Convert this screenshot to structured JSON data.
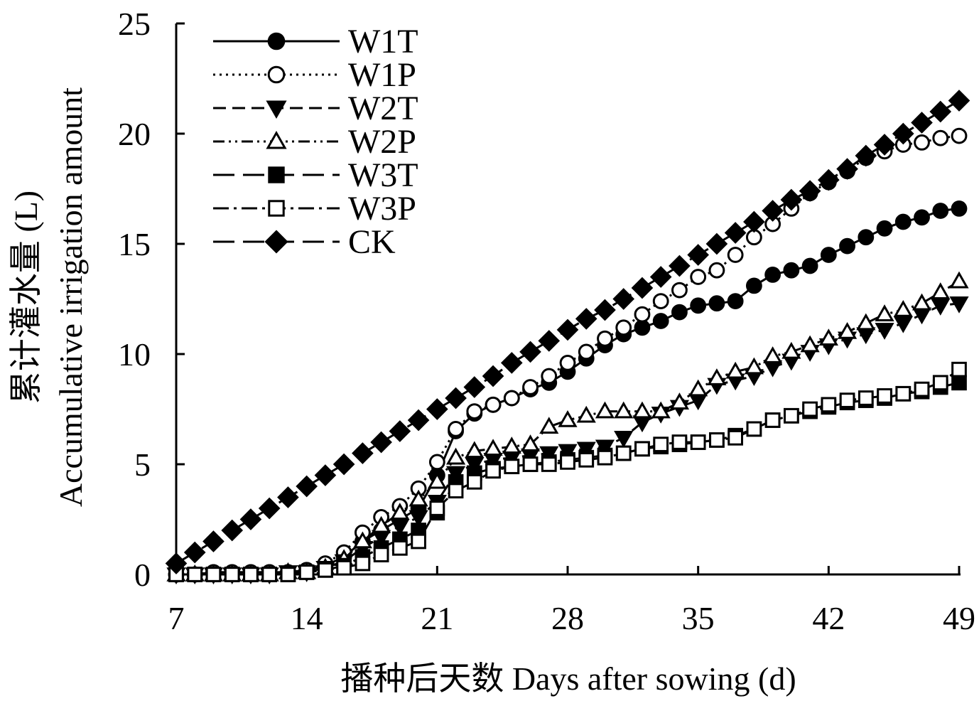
{
  "chart_data": {
    "type": "line",
    "title": "",
    "xlabel": "播种后天数 Days after sowing (d)",
    "ylabel_line1": "累计灌水量 (L)",
    "ylabel_line2": "Accumulative irrigation amount",
    "xlim": [
      7,
      49
    ],
    "ylim": [
      0,
      25
    ],
    "xticks": [
      "7",
      "14",
      "21",
      "28",
      "35",
      "42",
      "49"
    ],
    "yticks": [
      "0",
      "5",
      "10",
      "15",
      "20",
      "25"
    ],
    "legend_position": "top-left",
    "grid": false,
    "x": [
      7,
      8,
      9,
      10,
      11,
      12,
      13,
      14,
      15,
      16,
      17,
      18,
      19,
      20,
      21,
      22,
      23,
      24,
      25,
      26,
      27,
      28,
      29,
      30,
      31,
      32,
      33,
      34,
      35,
      36,
      37,
      38,
      39,
      40,
      41,
      42,
      43,
      44,
      45,
      46,
      47,
      48,
      49
    ],
    "series": [
      {
        "name": "W1T",
        "marker": "circle-filled",
        "line": "solid",
        "values": [
          0.0,
          0.0,
          0.1,
          0.1,
          0.1,
          0.1,
          0.1,
          0.2,
          0.4,
          0.8,
          1.5,
          2.0,
          2.5,
          3.0,
          4.5,
          6.5,
          7.3,
          7.7,
          8.0,
          8.4,
          8.7,
          9.2,
          9.8,
          10.4,
          10.9,
          11.2,
          11.5,
          11.9,
          12.2,
          12.3,
          12.4,
          13.1,
          13.6,
          13.8,
          14.0,
          14.5,
          14.9,
          15.3,
          15.7,
          16.0,
          16.2,
          16.5,
          16.6
        ]
      },
      {
        "name": "W1P",
        "marker": "circle-open",
        "line": "dotted",
        "values": [
          0.0,
          0.0,
          0.1,
          0.1,
          0.1,
          0.1,
          0.1,
          0.2,
          0.5,
          1.0,
          1.9,
          2.6,
          3.1,
          3.9,
          5.1,
          6.6,
          7.4,
          7.7,
          8.0,
          8.5,
          9.0,
          9.6,
          10.1,
          10.7,
          11.2,
          11.8,
          12.4,
          12.9,
          13.5,
          13.8,
          14.5,
          15.3,
          15.9,
          16.6,
          17.3,
          17.8,
          18.3,
          18.9,
          19.2,
          19.5,
          19.6,
          19.8,
          19.9
        ]
      },
      {
        "name": "W2T",
        "marker": "triangle-down-filled",
        "line": "dashed",
        "values": [
          0.0,
          0.0,
          0.0,
          0.0,
          0.0,
          0.0,
          0.1,
          0.1,
          0.3,
          0.6,
          1.2,
          1.7,
          2.2,
          2.6,
          3.3,
          4.6,
          5.0,
          5.2,
          5.3,
          5.4,
          5.5,
          5.6,
          5.7,
          5.8,
          6.2,
          6.9,
          7.3,
          7.6,
          7.9,
          8.6,
          8.8,
          9.0,
          9.4,
          9.7,
          10.1,
          10.4,
          10.7,
          10.9,
          11.1,
          11.4,
          11.8,
          12.2,
          12.3
        ]
      },
      {
        "name": "W2P",
        "marker": "triangle-up-open",
        "line": "dash-dot-dot",
        "values": [
          0.0,
          0.0,
          0.0,
          0.0,
          0.0,
          0.0,
          0.1,
          0.1,
          0.3,
          0.7,
          1.5,
          2.2,
          2.8,
          3.4,
          4.2,
          5.3,
          5.6,
          5.7,
          5.8,
          5.9,
          6.7,
          7.0,
          7.2,
          7.4,
          7.4,
          7.4,
          7.4,
          7.8,
          8.4,
          8.9,
          9.2,
          9.4,
          9.9,
          10.1,
          10.4,
          10.7,
          11.0,
          11.4,
          11.8,
          12.0,
          12.3,
          12.8,
          13.3
        ]
      },
      {
        "name": "W3T",
        "marker": "square-filled",
        "line": "long-dash",
        "values": [
          0.0,
          0.0,
          0.0,
          0.0,
          0.0,
          0.0,
          0.0,
          0.1,
          0.2,
          0.4,
          0.8,
          1.2,
          1.6,
          2.0,
          2.8,
          4.2,
          4.6,
          4.8,
          4.9,
          5.0,
          5.1,
          5.2,
          5.3,
          5.4,
          5.5,
          5.7,
          5.8,
          5.9,
          6.0,
          6.1,
          6.3,
          6.6,
          7.0,
          7.2,
          7.4,
          7.6,
          7.8,
          7.9,
          8.0,
          8.2,
          8.3,
          8.5,
          8.7
        ]
      },
      {
        "name": "W3P",
        "marker": "square-open",
        "line": "dash-dot",
        "values": [
          0.0,
          0.0,
          0.0,
          0.0,
          0.0,
          0.0,
          0.0,
          0.1,
          0.2,
          0.3,
          0.5,
          0.9,
          1.2,
          1.5,
          3.0,
          3.8,
          4.2,
          4.7,
          4.9,
          5.0,
          5.0,
          5.1,
          5.2,
          5.3,
          5.5,
          5.7,
          5.9,
          6.0,
          6.0,
          6.1,
          6.2,
          6.6,
          7.0,
          7.2,
          7.5,
          7.7,
          7.9,
          8.0,
          8.1,
          8.2,
          8.4,
          8.7,
          9.3
        ]
      },
      {
        "name": "CK",
        "marker": "diamond-filled",
        "line": "long-dash",
        "values": [
          0.5,
          1.0,
          1.5,
          2.0,
          2.5,
          3.0,
          3.5,
          4.0,
          4.5,
          5.0,
          5.5,
          6.0,
          6.5,
          7.0,
          7.5,
          8.0,
          8.5,
          9.0,
          9.6,
          10.1,
          10.6,
          11.1,
          11.6,
          12.0,
          12.5,
          13.0,
          13.5,
          14.0,
          14.5,
          15.0,
          15.5,
          16.0,
          16.5,
          17.0,
          17.4,
          17.9,
          18.4,
          19.0,
          19.5,
          20.0,
          20.5,
          21.0,
          21.5
        ]
      }
    ]
  }
}
